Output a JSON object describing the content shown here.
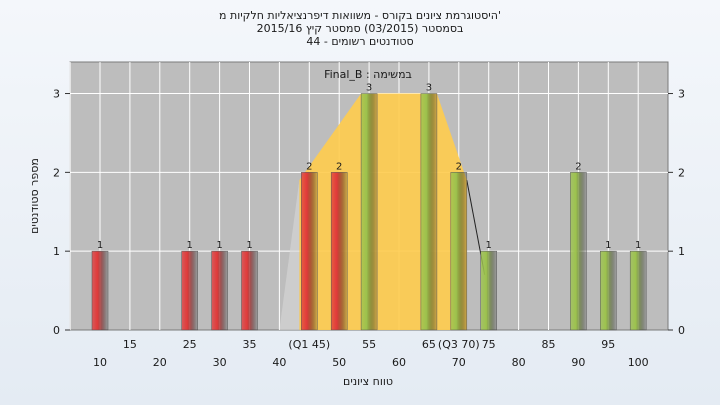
{
  "chart_data": {
    "type": "bar",
    "title_lines": [
      "היסטוגרמת ציונים בקורס - משוואות דיפרנציאליות חלקיות מ'",
      "בסמסטר  (03/2015)  סמסטר קיץ  2015/16",
      "44 - סטודנטים רשומים"
    ],
    "series_label": "Final_B : במשימה",
    "xlabel": "טווח ציונים",
    "ylabel": "מספר סטודנטים",
    "ylim": [
      0,
      3.4
    ],
    "yticks": [
      0,
      1,
      2,
      3
    ],
    "grid": true,
    "x_ticks_lower": [
      "10",
      "20",
      "30",
      "40",
      "50",
      "60",
      "70",
      "80",
      "90",
      "100"
    ],
    "x_ticks_upper": [
      "15",
      "25",
      "35",
      "(Q1 45)",
      "55",
      "65",
      "(Q3 70)",
      "75",
      "85",
      "95"
    ],
    "bars": [
      {
        "x": 10,
        "value": 1,
        "label": "1",
        "color": "red"
      },
      {
        "x": 25,
        "value": 1,
        "label": "1",
        "color": "red"
      },
      {
        "x": 30,
        "value": 1,
        "label": "1",
        "color": "red"
      },
      {
        "x": 35,
        "value": 1,
        "label": "1",
        "color": "red"
      },
      {
        "x": 45,
        "value": 2,
        "label": "2",
        "color": "red"
      },
      {
        "x": 50,
        "value": 2,
        "label": "2",
        "color": "red"
      },
      {
        "x": 55,
        "value": 3,
        "label": "3",
        "color": "green"
      },
      {
        "x": 65,
        "value": 3,
        "label": "3",
        "color": "green"
      },
      {
        "x": 70,
        "value": 2,
        "label": "2",
        "color": "green"
      },
      {
        "x": 75,
        "value": 1,
        "label": "1",
        "color": "green"
      },
      {
        "x": 90,
        "value": 2,
        "label": "2",
        "color": "green"
      },
      {
        "x": 95,
        "value": 1,
        "label": "1",
        "color": "green"
      },
      {
        "x": 100,
        "value": 1,
        "label": "1",
        "color": "green"
      }
    ],
    "quartile_band": {
      "from": 45,
      "to": 70
    },
    "median_region": {
      "from": 55,
      "to": 65,
      "value": 3
    },
    "colors": {
      "red": "#e03a3a",
      "green": "#9cc24d",
      "band": "#ffcc4d",
      "plot_bg": "#bdbdbd",
      "grid": "#ffffff"
    }
  }
}
